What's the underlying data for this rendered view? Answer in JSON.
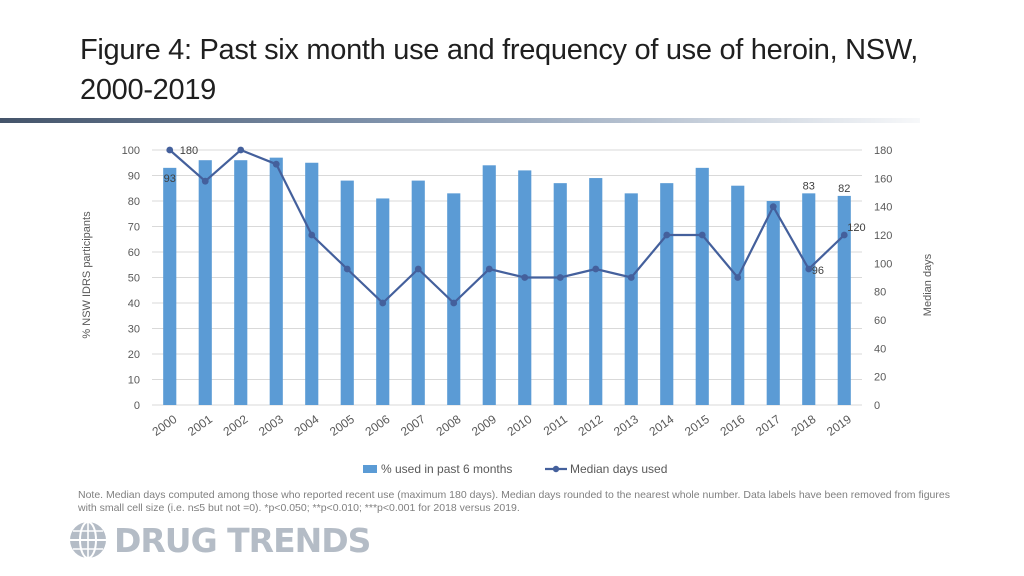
{
  "header": {
    "title": "Figure 4: Past six month use and frequency of use of heroin, NSW, 2000-2019"
  },
  "chart_data": {
    "type": "bar",
    "title": "Figure 4: Past six month use and frequency of use of heroin, NSW, 2000-2019",
    "categories": [
      "2000",
      "2001",
      "2002",
      "2003",
      "2004",
      "2005",
      "2006",
      "2007",
      "2008",
      "2009",
      "2010",
      "2011",
      "2012",
      "2013",
      "2014",
      "2015",
      "2016",
      "2017",
      "2018",
      "2019"
    ],
    "ylabel": "% NSW IDRS participants",
    "y2label": "Median days",
    "ylim": [
      0,
      100
    ],
    "y2lim": [
      0,
      180
    ],
    "yticks": [
      "0",
      "10",
      "20",
      "30",
      "40",
      "50",
      "60",
      "70",
      "80",
      "90",
      "100"
    ],
    "y2ticks": [
      "0",
      "20",
      "40",
      "60",
      "80",
      "100",
      "120",
      "140",
      "160",
      "180"
    ],
    "series": [
      {
        "name": "% used in past 6 months",
        "type": "bar",
        "axis": "left",
        "color": "#5b9bd5",
        "values": [
          93,
          96,
          96,
          97,
          95,
          88,
          81,
          88,
          83,
          94,
          92,
          87,
          89,
          83,
          87,
          93,
          86,
          80,
          83,
          82
        ]
      },
      {
        "name": "Median days used",
        "type": "line",
        "axis": "right",
        "color": "#44609c",
        "values": [
          180,
          158,
          180,
          170,
          120,
          96,
          72,
          96,
          72,
          96,
          90,
          90,
          96,
          90,
          120,
          120,
          90,
          140,
          96,
          120
        ]
      }
    ],
    "data_labels": [
      {
        "series": 0,
        "index": 0,
        "text": "93"
      },
      {
        "series": 0,
        "index": 18,
        "text": "83"
      },
      {
        "series": 0,
        "index": 19,
        "text": "82"
      },
      {
        "series": 1,
        "index": 0,
        "text": "180"
      },
      {
        "series": 1,
        "index": 18,
        "text": "96"
      },
      {
        "series": 1,
        "index": 19,
        "text": "120"
      }
    ],
    "legend": "bottom"
  },
  "note": {
    "text": "Note. Median days computed among those who reported recent use (maximum 180 days). Median days rounded to the nearest whole number. Data labels have been removed from figures with small cell size (i.e. n≤5 but not =0).  *p<0.050; **p<0.010; ***p<0.001 for 2018 versus 2019."
  },
  "branding": {
    "logo_text": "DRUG TRENDS"
  },
  "colors": {
    "bar": "#5b9bd5",
    "line": "#44609c",
    "grid": "#d9d9d9",
    "axis_text": "#595959"
  }
}
